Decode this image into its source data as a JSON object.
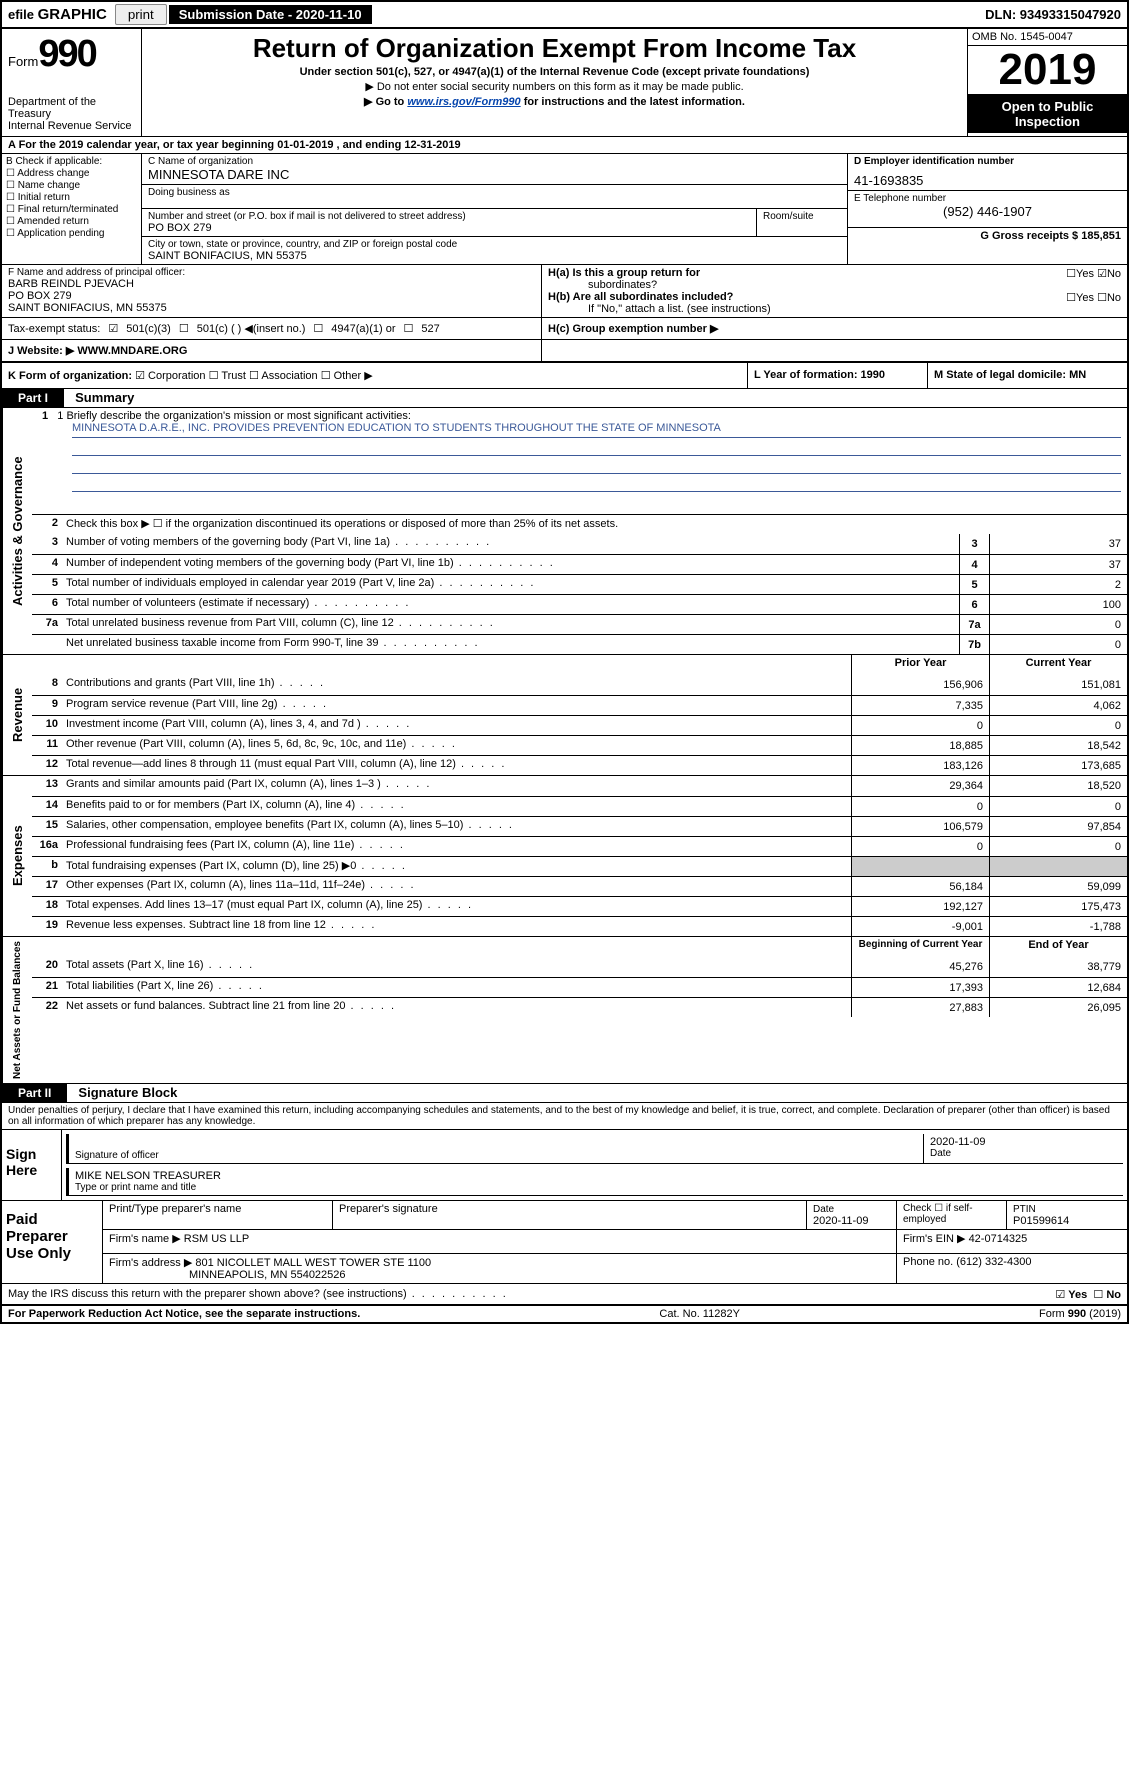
{
  "topbar": {
    "efile_prefix": "efile",
    "efile_main": "GRAPHIC",
    "print": "print",
    "sub_date_label": "Submission Date - 2020-11-10",
    "dln": "DLN: 93493315047920"
  },
  "header": {
    "form_word": "Form",
    "form_num": "990",
    "dept1": "Department of the Treasury",
    "dept2": "Internal Revenue Service",
    "title": "Return of Organization Exempt From Income Tax",
    "subtitle": "Under section 501(c), 527, or 4947(a)(1) of the Internal Revenue Code (except private foundations)",
    "arrow1": "▶ Do not enter social security numbers on this form as it may be made public.",
    "arrow2_pre": "▶ Go to ",
    "arrow2_link": "www.irs.gov/Form990",
    "arrow2_post": " for instructions and the latest information.",
    "omb": "OMB No. 1545-0047",
    "year": "2019",
    "public1": "Open to Public",
    "public2": "Inspection"
  },
  "period": "A For the 2019 calendar year, or tax year beginning 01-01-2019    , and ending 12-31-2019",
  "boxB": {
    "label": "B Check if applicable:",
    "o1": "Address change",
    "o2": "Name change",
    "o3": "Initial return",
    "o4": "Final return/terminated",
    "o5": "Amended return",
    "o6": "Application pending"
  },
  "boxC": {
    "name_label": "C Name of organization",
    "name": "MINNESOTA DARE INC",
    "dba_label": "Doing business as",
    "street_label": "Number and street (or P.O. box if mail is not delivered to street address)",
    "street": "PO BOX 279",
    "room_label": "Room/suite",
    "city_label": "City or town, state or province, country, and ZIP or foreign postal code",
    "city": "SAINT BONIFACIUS, MN  55375"
  },
  "boxD": {
    "label": "D Employer identification number",
    "val": "41-1693835"
  },
  "boxE": {
    "label": "E Telephone number",
    "val": "(952) 446-1907"
  },
  "boxG": {
    "label": "G Gross receipts $ 185,851"
  },
  "boxF": {
    "label": "F  Name and address of principal officer:",
    "l1": "BARB REINDL PJEVACH",
    "l2": "PO BOX 279",
    "l3": "SAINT BONIFACIUS, MN  55375"
  },
  "boxH": {
    "ha_label": "H(a)  Is this a group return for",
    "ha_sub": "subordinates?",
    "hb_label": "H(b)  Are all subordinates included?",
    "hb_note": "If \"No,\" attach a list. (see instructions)",
    "hc_label": "H(c)  Group exemption number ▶",
    "yes": "Yes",
    "no": "No"
  },
  "taxstatus": {
    "label": "Tax-exempt status:",
    "o1": "501(c)(3)",
    "o2": "501(c) (    ) ◀(insert no.)",
    "o3": "4947(a)(1) or",
    "o4": "527"
  },
  "boxJ": {
    "label": "J   Website: ▶",
    "val": "WWW.MNDARE.ORG"
  },
  "boxK": {
    "label": "K Form of organization:",
    "o1": "Corporation",
    "o2": "Trust",
    "o3": "Association",
    "o4": "Other ▶"
  },
  "boxL": {
    "label": "L Year of formation: 1990"
  },
  "boxM": {
    "label": "M State of legal domicile: MN"
  },
  "part1": {
    "header": "Part I",
    "label": "Summary",
    "l1_label": "1   Briefly describe the organization's mission or most significant activities:",
    "l1_text": "MINNESOTA D.A.R.E., INC. PROVIDES PREVENTION EDUCATION TO STUDENTS THROUGHOUT THE STATE OF MINNESOTA",
    "l2": "Check this box ▶ ☐  if the organization discontinued its operations or disposed of more than 25% of its net assets.",
    "sideA": "Activities & Governance",
    "sideB": "Revenue",
    "sideC": "Expenses",
    "sideD": "Net Assets or Fund Balances"
  },
  "rows_gov": [
    {
      "n": "3",
      "t": "Number of voting members of the governing body (Part VI, line 1a)",
      "b": "3",
      "v": "37"
    },
    {
      "n": "4",
      "t": "Number of independent voting members of the governing body (Part VI, line 1b)",
      "b": "4",
      "v": "37"
    },
    {
      "n": "5",
      "t": "Total number of individuals employed in calendar year 2019 (Part V, line 2a)",
      "b": "5",
      "v": "2"
    },
    {
      "n": "6",
      "t": "Total number of volunteers (estimate if necessary)",
      "b": "6",
      "v": "100"
    },
    {
      "n": "7a",
      "t": "Total unrelated business revenue from Part VIII, column (C), line 12",
      "b": "7a",
      "v": "0"
    },
    {
      "n": "",
      "t": "Net unrelated business taxable income from Form 990-T, line 39",
      "b": "7b",
      "v": "0"
    }
  ],
  "hdr_prior": "Prior Year",
  "hdr_curr": "Current Year",
  "rows_rev": [
    {
      "n": "8",
      "t": "Contributions and grants (Part VIII, line 1h)",
      "p": "156,906",
      "c": "151,081"
    },
    {
      "n": "9",
      "t": "Program service revenue (Part VIII, line 2g)",
      "p": "7,335",
      "c": "4,062"
    },
    {
      "n": "10",
      "t": "Investment income (Part VIII, column (A), lines 3, 4, and 7d )",
      "p": "0",
      "c": "0"
    },
    {
      "n": "11",
      "t": "Other revenue (Part VIII, column (A), lines 5, 6d, 8c, 9c, 10c, and 11e)",
      "p": "18,885",
      "c": "18,542"
    },
    {
      "n": "12",
      "t": "Total revenue—add lines 8 through 11 (must equal Part VIII, column (A), line 12)",
      "p": "183,126",
      "c": "173,685"
    }
  ],
  "rows_exp": [
    {
      "n": "13",
      "t": "Grants and similar amounts paid (Part IX, column (A), lines 1–3 )",
      "p": "29,364",
      "c": "18,520"
    },
    {
      "n": "14",
      "t": "Benefits paid to or for members (Part IX, column (A), line 4)",
      "p": "0",
      "c": "0"
    },
    {
      "n": "15",
      "t": "Salaries, other compensation, employee benefits (Part IX, column (A), lines 5–10)",
      "p": "106,579",
      "c": "97,854"
    },
    {
      "n": "16a",
      "t": "Professional fundraising fees (Part IX, column (A), line 11e)",
      "p": "0",
      "c": "0"
    },
    {
      "n": "b",
      "t": "Total fundraising expenses (Part IX, column (D), line 25) ▶0",
      "p": "",
      "c": "",
      "gray": true
    },
    {
      "n": "17",
      "t": "Other expenses (Part IX, column (A), lines 11a–11d, 11f–24e)",
      "p": "56,184",
      "c": "59,099"
    },
    {
      "n": "18",
      "t": "Total expenses. Add lines 13–17 (must equal Part IX, column (A), line 25)",
      "p": "192,127",
      "c": "175,473"
    },
    {
      "n": "19",
      "t": "Revenue less expenses. Subtract line 18 from line 12",
      "p": "-9,001",
      "c": "-1,788"
    }
  ],
  "hdr_beg": "Beginning of Current Year",
  "hdr_end": "End of Year",
  "rows_net": [
    {
      "n": "20",
      "t": "Total assets (Part X, line 16)",
      "p": "45,276",
      "c": "38,779"
    },
    {
      "n": "21",
      "t": "Total liabilities (Part X, line 26)",
      "p": "17,393",
      "c": "12,684"
    },
    {
      "n": "22",
      "t": "Net assets or fund balances. Subtract line 21 from line 20",
      "p": "27,883",
      "c": "26,095"
    }
  ],
  "part2": {
    "header": "Part II",
    "label": "Signature Block",
    "decl": "Under penalties of perjury, I declare that I have examined this return, including accompanying schedules and statements, and to the best of my knowledge and belief, it is true, correct, and complete. Declaration of preparer (other than officer) is based on all information of which preparer has any knowledge."
  },
  "sign": {
    "left1": "Sign",
    "left2": "Here",
    "sig_label": "Signature of officer",
    "date": "2020-11-09",
    "date_label": "Date",
    "name": "MIKE NELSON TREASURER",
    "name_label": "Type or print name and title"
  },
  "prep": {
    "left1": "Paid",
    "left2": "Preparer",
    "left3": "Use Only",
    "h1": "Print/Type preparer's name",
    "h2": "Preparer's signature",
    "h3": "Date",
    "h3v": "2020-11-09",
    "h4": "Check ☐ if self-employed",
    "h5": "PTIN",
    "h5v": "P01599614",
    "firm_name_label": "Firm's name      ▶",
    "firm_name": "RSM US LLP",
    "firm_ein_label": "Firm's EIN ▶",
    "firm_ein": "42-0714325",
    "firm_addr_label": "Firm's address ▶",
    "firm_addr1": "801 NICOLLET MALL WEST TOWER STE 1100",
    "firm_addr2": "MINNEAPOLIS, MN  554022526",
    "phone_label": "Phone no.",
    "phone": "(612) 332-4300"
  },
  "discuss": "May the IRS discuss this return with the preparer shown above? (see instructions)",
  "footer": {
    "left": "For Paperwork Reduction Act Notice, see the separate instructions.",
    "mid": "Cat. No. 11282Y",
    "right": "Form 990 (2019)"
  },
  "colors": {
    "link": "#0645ad",
    "accent_border": "#3b5998"
  }
}
